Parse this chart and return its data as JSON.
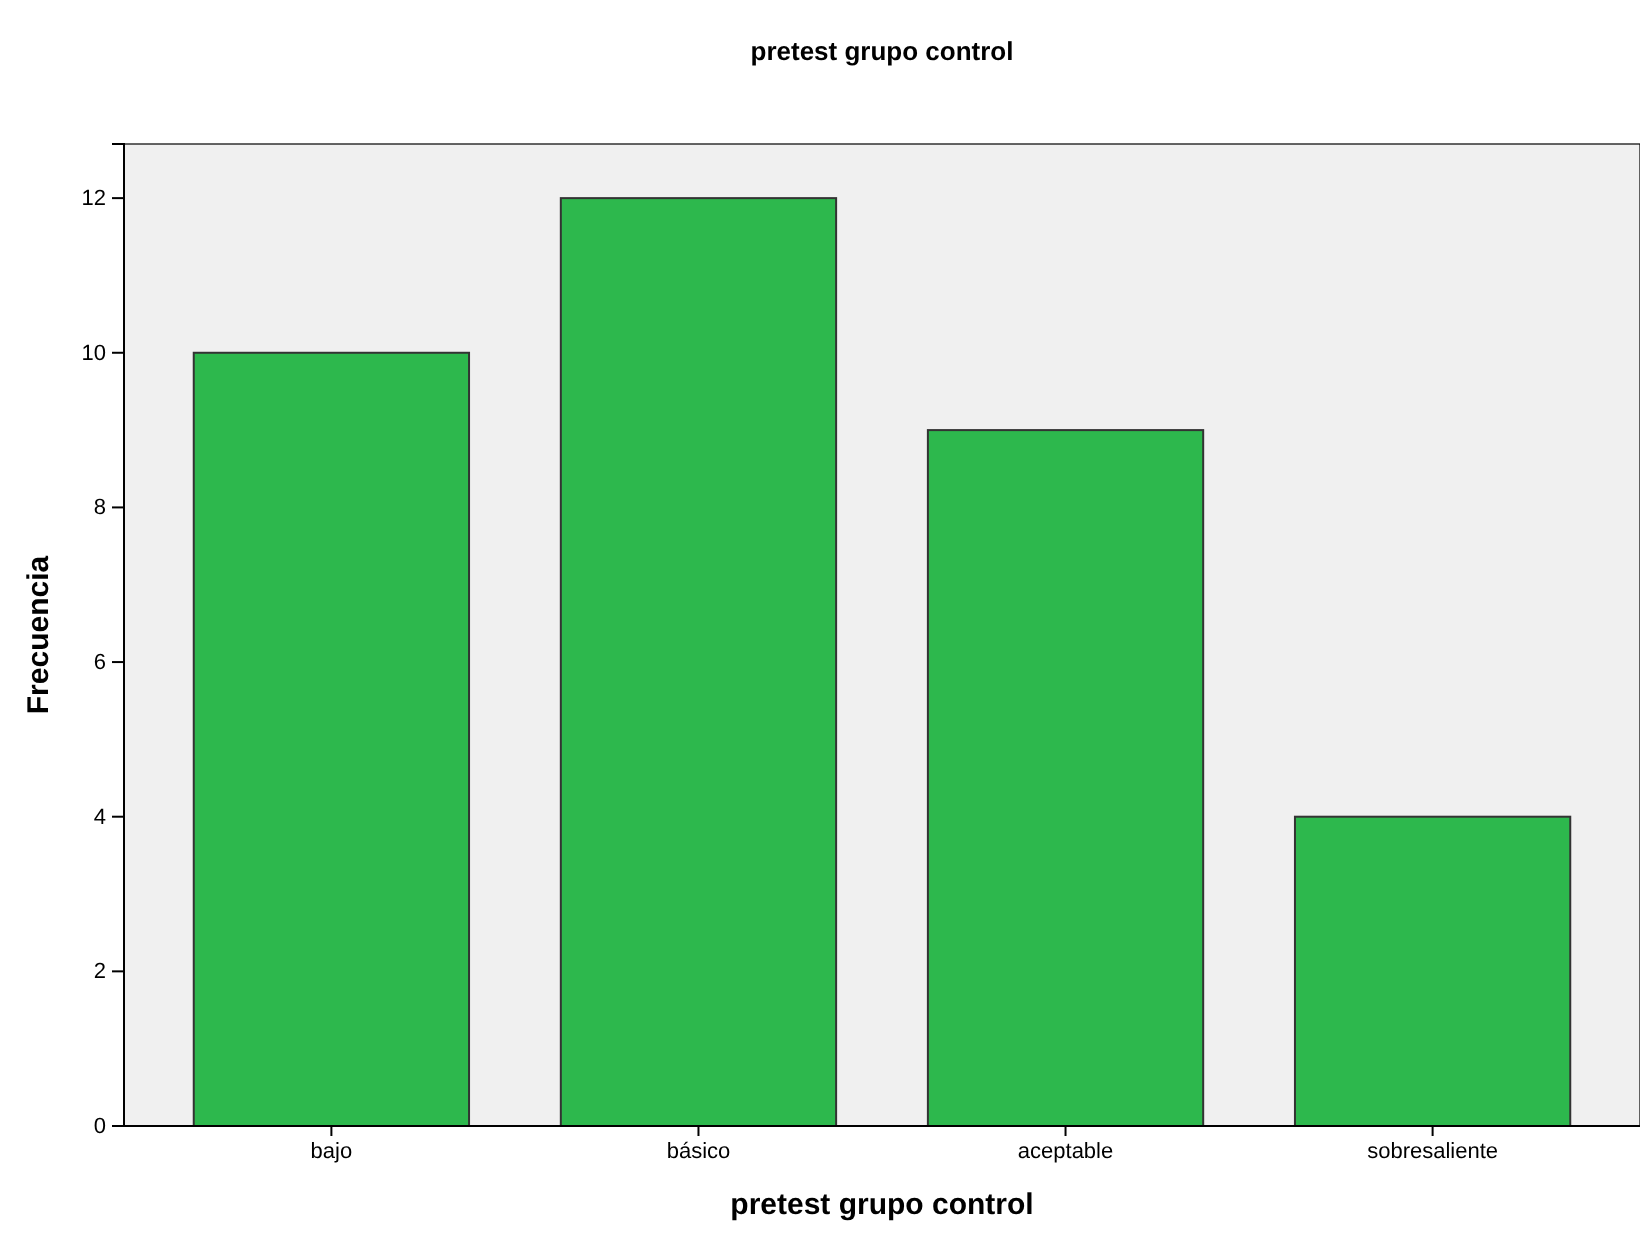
{
  "chart_data": {
    "type": "bar",
    "title": "pretest grupo control",
    "xlabel": "pretest grupo control",
    "ylabel": "Frecuencia",
    "categories": [
      "bajo",
      "básico",
      "aceptable",
      "sobresaliente"
    ],
    "values": [
      10,
      12,
      9,
      4
    ],
    "color": "#2db84d",
    "ylim": [
      0,
      12.7
    ],
    "yticks": [
      0,
      2,
      4,
      6,
      8,
      10,
      12
    ]
  }
}
